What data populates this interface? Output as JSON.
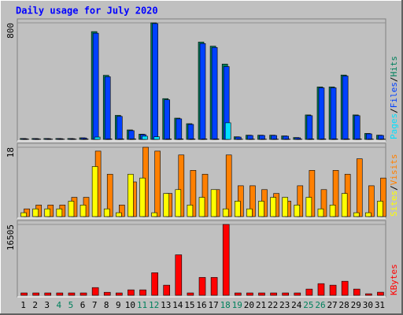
{
  "chart_data": [
    {
      "type": "bar",
      "title": "Daily usage for July 2020",
      "separator": "/",
      "ylim": [
        0,
        800
      ],
      "yticks": [
        800
      ],
      "series": [
        {
          "name": "Hits",
          "color": "#00805c",
          "values": [
            6,
            6,
            6,
            6,
            6,
            11,
            740,
            440,
            165,
            65,
            36,
            800,
            280,
            146,
            108,
            668,
            640,
            517,
            18,
            29,
            29,
            29,
            24,
            13,
            168,
            360,
            360,
            442,
            168,
            41,
            29
          ]
        },
        {
          "name": "Files",
          "color": "#0040ff",
          "values": [
            5,
            5,
            5,
            5,
            5,
            10,
            729,
            430,
            158,
            60,
            33,
            795,
            272,
            141,
            103,
            658,
            631,
            500,
            16,
            27,
            27,
            27,
            22,
            11,
            163,
            354,
            354,
            435,
            163,
            38,
            27
          ]
        },
        {
          "name": "Pages",
          "color": "#00e0ff",
          "values": [
            2,
            2,
            2,
            2,
            2,
            3,
            16,
            3,
            3,
            4,
            22,
            18,
            3,
            3,
            3,
            3,
            3,
            114,
            2,
            2,
            2,
            2,
            2,
            2,
            3,
            3,
            3,
            3,
            3,
            2,
            2
          ]
        }
      ]
    },
    {
      "type": "bar",
      "separator": "/",
      "ylim": [
        0,
        18
      ],
      "yticks": [
        18
      ],
      "series": [
        {
          "name": "Visits",
          "color": "#ff8000",
          "values": [
            2,
            3,
            3,
            3,
            5,
            5,
            17,
            11,
            3,
            9,
            18,
            17,
            6,
            16,
            12,
            11,
            7,
            16,
            8,
            8,
            7,
            6,
            4,
            8,
            12,
            7,
            12,
            11,
            15,
            8,
            10
          ]
        },
        {
          "name": "Sites",
          "color": "#ffff00",
          "values": [
            1,
            2,
            2,
            2,
            4,
            3,
            13,
            2,
            1,
            11,
            10,
            1,
            6,
            7,
            3,
            5,
            7,
            2,
            4,
            2,
            4,
            5,
            5,
            3,
            5,
            2,
            3,
            6,
            1,
            1,
            4
          ]
        }
      ]
    },
    {
      "type": "bar",
      "ylim": [
        0,
        16505
      ],
      "yticks": [
        16505
      ],
      "categories": [
        1,
        2,
        3,
        4,
        5,
        6,
        7,
        8,
        9,
        10,
        11,
        12,
        13,
        14,
        15,
        16,
        17,
        18,
        19,
        20,
        21,
        22,
        23,
        24,
        25,
        26,
        27,
        28,
        29,
        30,
        31
      ],
      "weekend_categories": [
        4,
        5,
        11,
        12,
        18,
        19,
        25,
        26
      ],
      "weekend_color": "#00805c",
      "series": [
        {
          "name": "KBytes",
          "color": "#ff0000",
          "values": [
            550,
            550,
            550,
            550,
            550,
            550,
            1800,
            700,
            550,
            1270,
            1270,
            5260,
            2360,
            9430,
            550,
            4170,
            4170,
            16505,
            550,
            550,
            550,
            550,
            550,
            550,
            1450,
            2720,
            2360,
            3270,
            1450,
            360,
            720
          ]
        }
      ]
    }
  ]
}
